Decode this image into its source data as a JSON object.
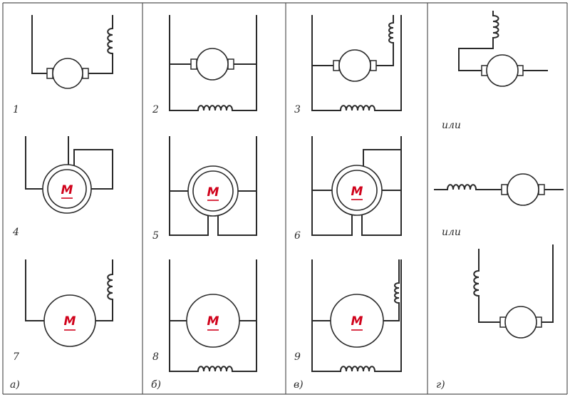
{
  "panels": [
    {
      "label": "а)"
    },
    {
      "label": "б)"
    },
    {
      "label": "в)"
    },
    {
      "label": "г)"
    }
  ],
  "schematics": [
    {
      "number": "1",
      "motor_label": ""
    },
    {
      "number": "2",
      "motor_label": ""
    },
    {
      "number": "3",
      "motor_label": ""
    },
    {
      "number": "4",
      "motor_label": "М"
    },
    {
      "number": "5",
      "motor_label": "М"
    },
    {
      "number": "6",
      "motor_label": "М"
    },
    {
      "number": "7",
      "motor_label": "М"
    },
    {
      "number": "8",
      "motor_label": "М"
    },
    {
      "number": "9",
      "motor_label": "М"
    }
  ],
  "alternatives": {
    "separator_1": "или",
    "separator_2": "или"
  },
  "colors": {
    "line": "#2a2a2a",
    "motor_label": "#d0021b",
    "background": "#ffffff"
  }
}
